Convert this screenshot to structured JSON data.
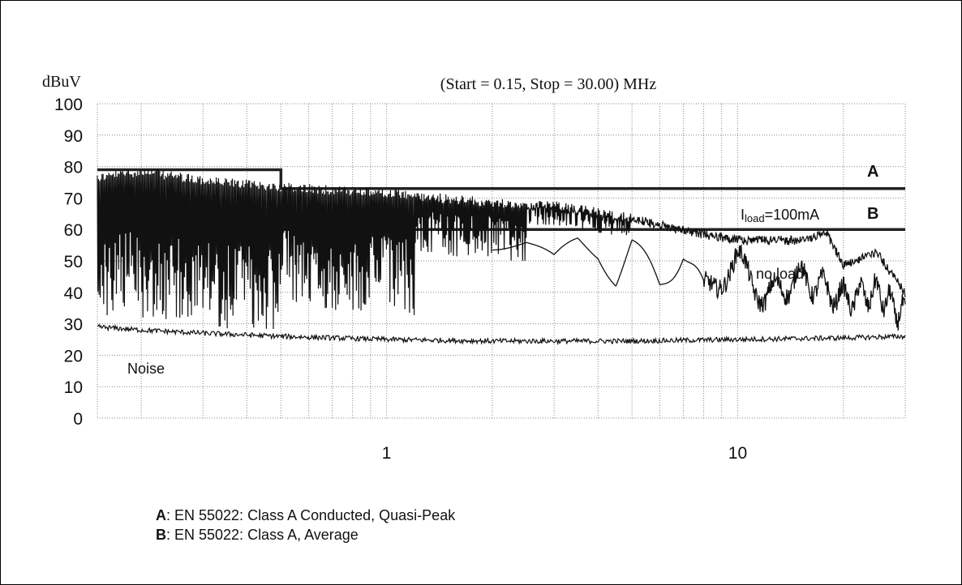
{
  "chart_data": {
    "type": "line",
    "ylabel": "dBuV",
    "title": "(Start = 0.15, Stop = 30.00) MHz",
    "x_scale": "log",
    "xlim": [
      0.15,
      30.0
    ],
    "ylim": [
      0,
      100
    ],
    "y_ticks": [
      "0",
      "10",
      "20",
      "30",
      "40",
      "50",
      "60",
      "70",
      "80",
      "90",
      "100"
    ],
    "x_ticks": [
      {
        "value": 1,
        "label": "1"
      },
      {
        "value": 10,
        "label": "10"
      }
    ],
    "grid": true,
    "series": [
      {
        "name": "A",
        "style": "limit",
        "x": [
          0.15,
          0.5,
          0.5,
          30.0
        ],
        "values": [
          79,
          79,
          73,
          73
        ]
      },
      {
        "name": "B",
        "style": "limit",
        "x": [
          0.15,
          0.5,
          0.5,
          30.0
        ],
        "values": [
          66,
          66,
          60,
          60
        ]
      },
      {
        "name": "Iload=100mA",
        "style": "envelope",
        "x": [
          0.15,
          0.2,
          0.3,
          0.5,
          0.7,
          1.0,
          2.0,
          3.0,
          4.0,
          5.0,
          7.0,
          10.0,
          15.0,
          18.0,
          20.0,
          25.0,
          30.0
        ],
        "values": [
          78,
          80,
          77,
          75,
          74,
          73,
          70,
          69,
          67,
          65,
          61,
          58,
          58,
          60,
          50,
          54,
          41
        ]
      },
      {
        "name": "no load",
        "style": "scallop",
        "x": [
          0.15,
          0.2,
          0.3,
          0.5,
          0.7,
          1.0,
          1.5,
          2.0,
          2.5,
          3.0,
          3.5,
          4.0,
          4.5,
          5.0,
          6.0,
          7.0,
          8.0,
          10.0,
          12.0,
          15.0,
          20.0,
          25.0,
          30.0
        ],
        "values": [
          55,
          52,
          50,
          49,
          48,
          47,
          50,
          57,
          55,
          48,
          56,
          54,
          45,
          55,
          42,
          53,
          40,
          50,
          38,
          45,
          38,
          40,
          32
        ]
      },
      {
        "name": "Noise",
        "style": "noise",
        "x": [
          0.15,
          0.2,
          0.3,
          0.5,
          1.0,
          2.0,
          5.0,
          10.0,
          20.0,
          30.0
        ],
        "values": [
          29,
          28,
          27,
          26,
          25,
          24.5,
          24.5,
          25,
          25.5,
          26
        ]
      }
    ],
    "annotations": {
      "A": "A",
      "B": "B",
      "iload_main": "I",
      "iload_sub": "load",
      "iload_rest": "=100mA",
      "no_load": "no load",
      "noise": "Noise"
    },
    "legend": [
      {
        "key": "A",
        "text": ": EN 55022: Class A Conducted, Quasi-Peak"
      },
      {
        "key": "B",
        "text": ": EN 55022: Class A, Average"
      }
    ]
  }
}
